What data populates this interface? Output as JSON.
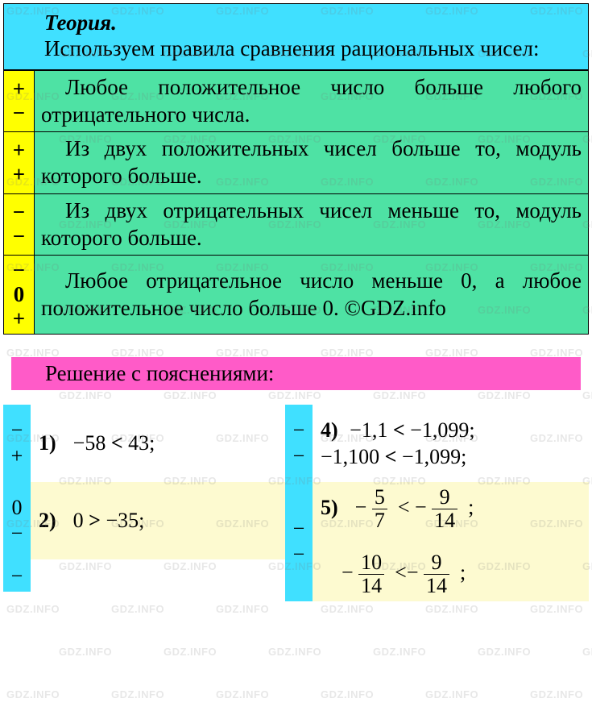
{
  "watermark": "GDZ.INFO",
  "theory": {
    "title": "Теория.",
    "text": "Используем правила сравнения раци­ональных чисел:"
  },
  "rules": [
    {
      "signs": [
        "+",
        "−"
      ],
      "text": "Любое положительное число больше любого отрицательного числа."
    },
    {
      "signs": [
        "+",
        "+"
      ],
      "text": "Из двух положительных чисел боль­ше то, модуль которого больше."
    },
    {
      "signs": [
        "−",
        "−"
      ],
      "text": "Из двух отрицательных чисел мень­ше то, модуль которого больше."
    },
    {
      "signs": [
        "−",
        "0",
        "+"
      ],
      "text": "Любое отрицательное число меньше 0, а любое положительное число боль­ше 0. ©GDZ.info"
    }
  ],
  "solution_header": "Решение с пояснениями:",
  "problems_left": [
    {
      "signs": [
        "−",
        "+"
      ],
      "num": "1)",
      "text_a": "−58 ",
      "op": "<",
      "text_b": " 43;",
      "shade": false
    },
    {
      "signs": [
        "0",
        "−"
      ],
      "num": "2)",
      "text_a": "0 ",
      "op": ">",
      "text_b": " −35;",
      "shade": true
    }
  ],
  "problems_right": [
    {
      "signs": [
        "−",
        "−"
      ],
      "num": "4)",
      "line1_a": "−1,1 ",
      "line1_op": "<",
      "line1_b": " −1,099;",
      "line2_a": "−1,100 ",
      "line2_op": "<",
      "line2_b": " −1,099;",
      "shade": false
    },
    {
      "signs": [
        "−",
        "−"
      ],
      "num": "5)",
      "f1n": "5",
      "f1d": "7",
      "f2n": "9",
      "f2d": "14",
      "f3n": "10",
      "f3d": "14",
      "f4n": "9",
      "f4d": "14",
      "shade": true
    }
  ],
  "partial_sign": "−",
  "colors": {
    "cyan": "#40e0ff",
    "yellow": "#ffff00",
    "green": "#4ee2a4",
    "pink": "#ff5bc8",
    "cream": "#fdfad0"
  },
  "fonts": {
    "body_size_pt": 20,
    "watermark_size_pt": 10
  }
}
